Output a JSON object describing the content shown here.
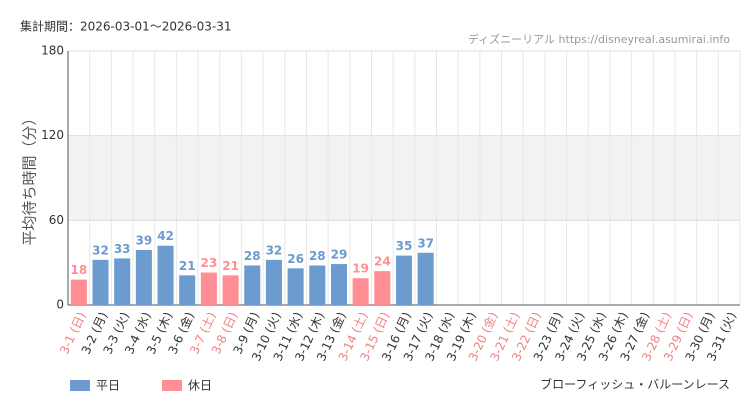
{
  "chart_data": {
    "type": "bar",
    "title": "集計期間：2026-03-01～2026-03-31",
    "source": "ディズニーリアル https://disneyreal.asumirai.info",
    "y_label": "平均待ち時間（分）",
    "attraction": "ブローフィッシュ・バルーンレース",
    "categories": [
      "3-1 (日)",
      "3-2 (月)",
      "3-3 (火)",
      "3-4 (水)",
      "3-5 (木)",
      "3-6 (金)",
      "3-7 (土)",
      "3-8 (日)",
      "3-9 (月)",
      "3-10 (火)",
      "3-11 (水)",
      "3-12 (木)",
      "3-13 (金)",
      "3-14 (土)",
      "3-15 (日)",
      "3-16 (月)",
      "3-17 (火)",
      "3-18 (水)",
      "3-19 (木)",
      "3-20 (金)",
      "3-21 (土)",
      "3-22 (日)",
      "3-23 (月)",
      "3-24 (火)",
      "3-25 (水)",
      "3-26 (木)",
      "3-27 (金)",
      "3-28 (土)",
      "3-29 (日)",
      "3-30 (月)",
      "3-31 (火)"
    ],
    "category_colors": [
      "#f08080",
      "#333333",
      "#333333",
      "#333333",
      "#333333",
      "#333333",
      "#f08080",
      "#f08080",
      "#333333",
      "#333333",
      "#333333",
      "#333333",
      "#333333",
      "#f08080",
      "#f08080",
      "#333333",
      "#333333",
      "#333333",
      "#333333",
      "#f08080",
      "#f08080",
      "#f08080",
      "#333333",
      "#333333",
      "#333333",
      "#333333",
      "#333333",
      "#f08080",
      "#f08080",
      "#333333",
      "#333333"
    ],
    "series": [
      {
        "name": "平日",
        "color": "#6b9bcf",
        "values": [
          null,
          32,
          33,
          39,
          42,
          21,
          null,
          null,
          28,
          32,
          26,
          28,
          29,
          null,
          null,
          35,
          37,
          null,
          null,
          null,
          null,
          null,
          null,
          null,
          null,
          null,
          null,
          null,
          null,
          null,
          null
        ]
      },
      {
        "name": "休日",
        "color": "#ff8f94",
        "values": [
          18,
          null,
          null,
          null,
          null,
          null,
          23,
          21,
          null,
          null,
          null,
          null,
          null,
          19,
          24,
          null,
          null,
          null,
          null,
          null,
          null,
          null,
          null,
          null,
          null,
          null,
          null,
          null,
          null,
          null,
          null
        ]
      }
    ],
    "ylim": [
      0,
      180
    ],
    "yticks": [
      0,
      60,
      120,
      180
    ],
    "grid": true
  }
}
